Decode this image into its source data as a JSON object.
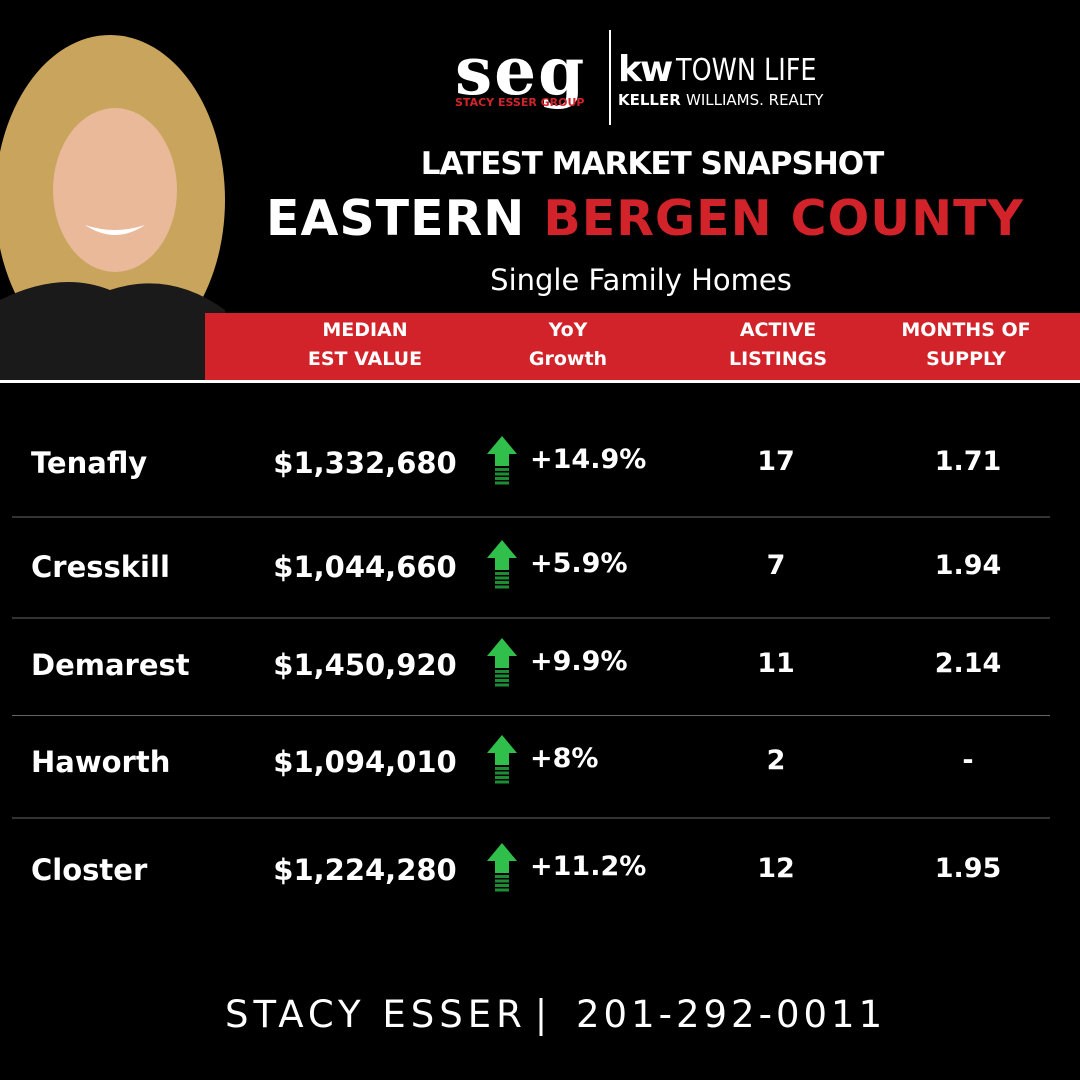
{
  "logo": {
    "seg": "seg",
    "seg_sub": "STACY ESSER GROUP",
    "kw": "kw",
    "town": "TOWN LIFE",
    "keller": "KELLER",
    "williams": "WILLIAMS. REALTY"
  },
  "title": {
    "kicker": "LATEST MARKET SNAPSHOT",
    "main_white": "EASTERN",
    "main_red": "BERGEN COUNTY",
    "subtitle": "Single Family Homes"
  },
  "table": {
    "headers": [
      [
        "MEDIAN",
        "EST VALUE"
      ],
      [
        "YoY",
        "Growth"
      ],
      [
        "ACTIVE",
        "LISTINGS"
      ],
      [
        "MONTHS OF",
        "SUPPLY"
      ]
    ],
    "rows": [
      [
        "Tenafly",
        "$1,332,680",
        "+14.9%",
        "17",
        "1.71"
      ],
      [
        "Cresskill",
        "$1,044,660",
        "+5.9%",
        "7",
        "1.94"
      ],
      [
        "Demarest",
        "$1,450,920",
        "+9.9%",
        "11",
        "2.14"
      ],
      [
        "Haworth",
        "$1,094,010",
        "+8%",
        "2",
        "-"
      ],
      [
        "Closter",
        "$1,224,280",
        "+11.2%",
        "12",
        "1.95"
      ]
    ]
  },
  "footer": {
    "name": "STACY ESSER",
    "phone": "201-292-0011"
  }
}
